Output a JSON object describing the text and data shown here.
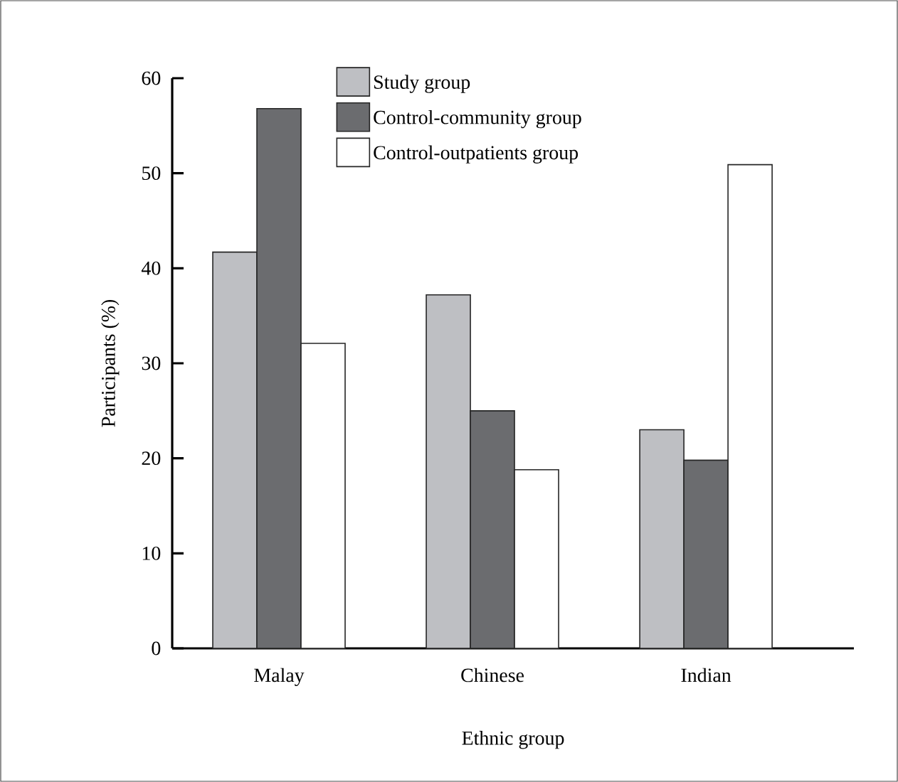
{
  "chart_data": {
    "type": "bar",
    "xlabel": "Ethnic group",
    "ylabel": "Participants (%)",
    "categories": [
      "Malay",
      "Chinese",
      "Indian"
    ],
    "series": [
      {
        "name": "Study group",
        "color": "#bebfc3",
        "values": [
          41.7,
          37.2,
          23.0
        ]
      },
      {
        "name": "Control-community group",
        "color": "#6b6c6f",
        "values": [
          56.8,
          25.0,
          19.8
        ]
      },
      {
        "name": "Control-outpatients group",
        "color": "#ffffff",
        "values": [
          32.1,
          18.8,
          50.9
        ]
      }
    ],
    "ylim": [
      0,
      60
    ],
    "yticks": [
      0,
      10,
      20,
      30,
      40,
      50,
      60
    ],
    "grid": false,
    "legend": "top"
  }
}
